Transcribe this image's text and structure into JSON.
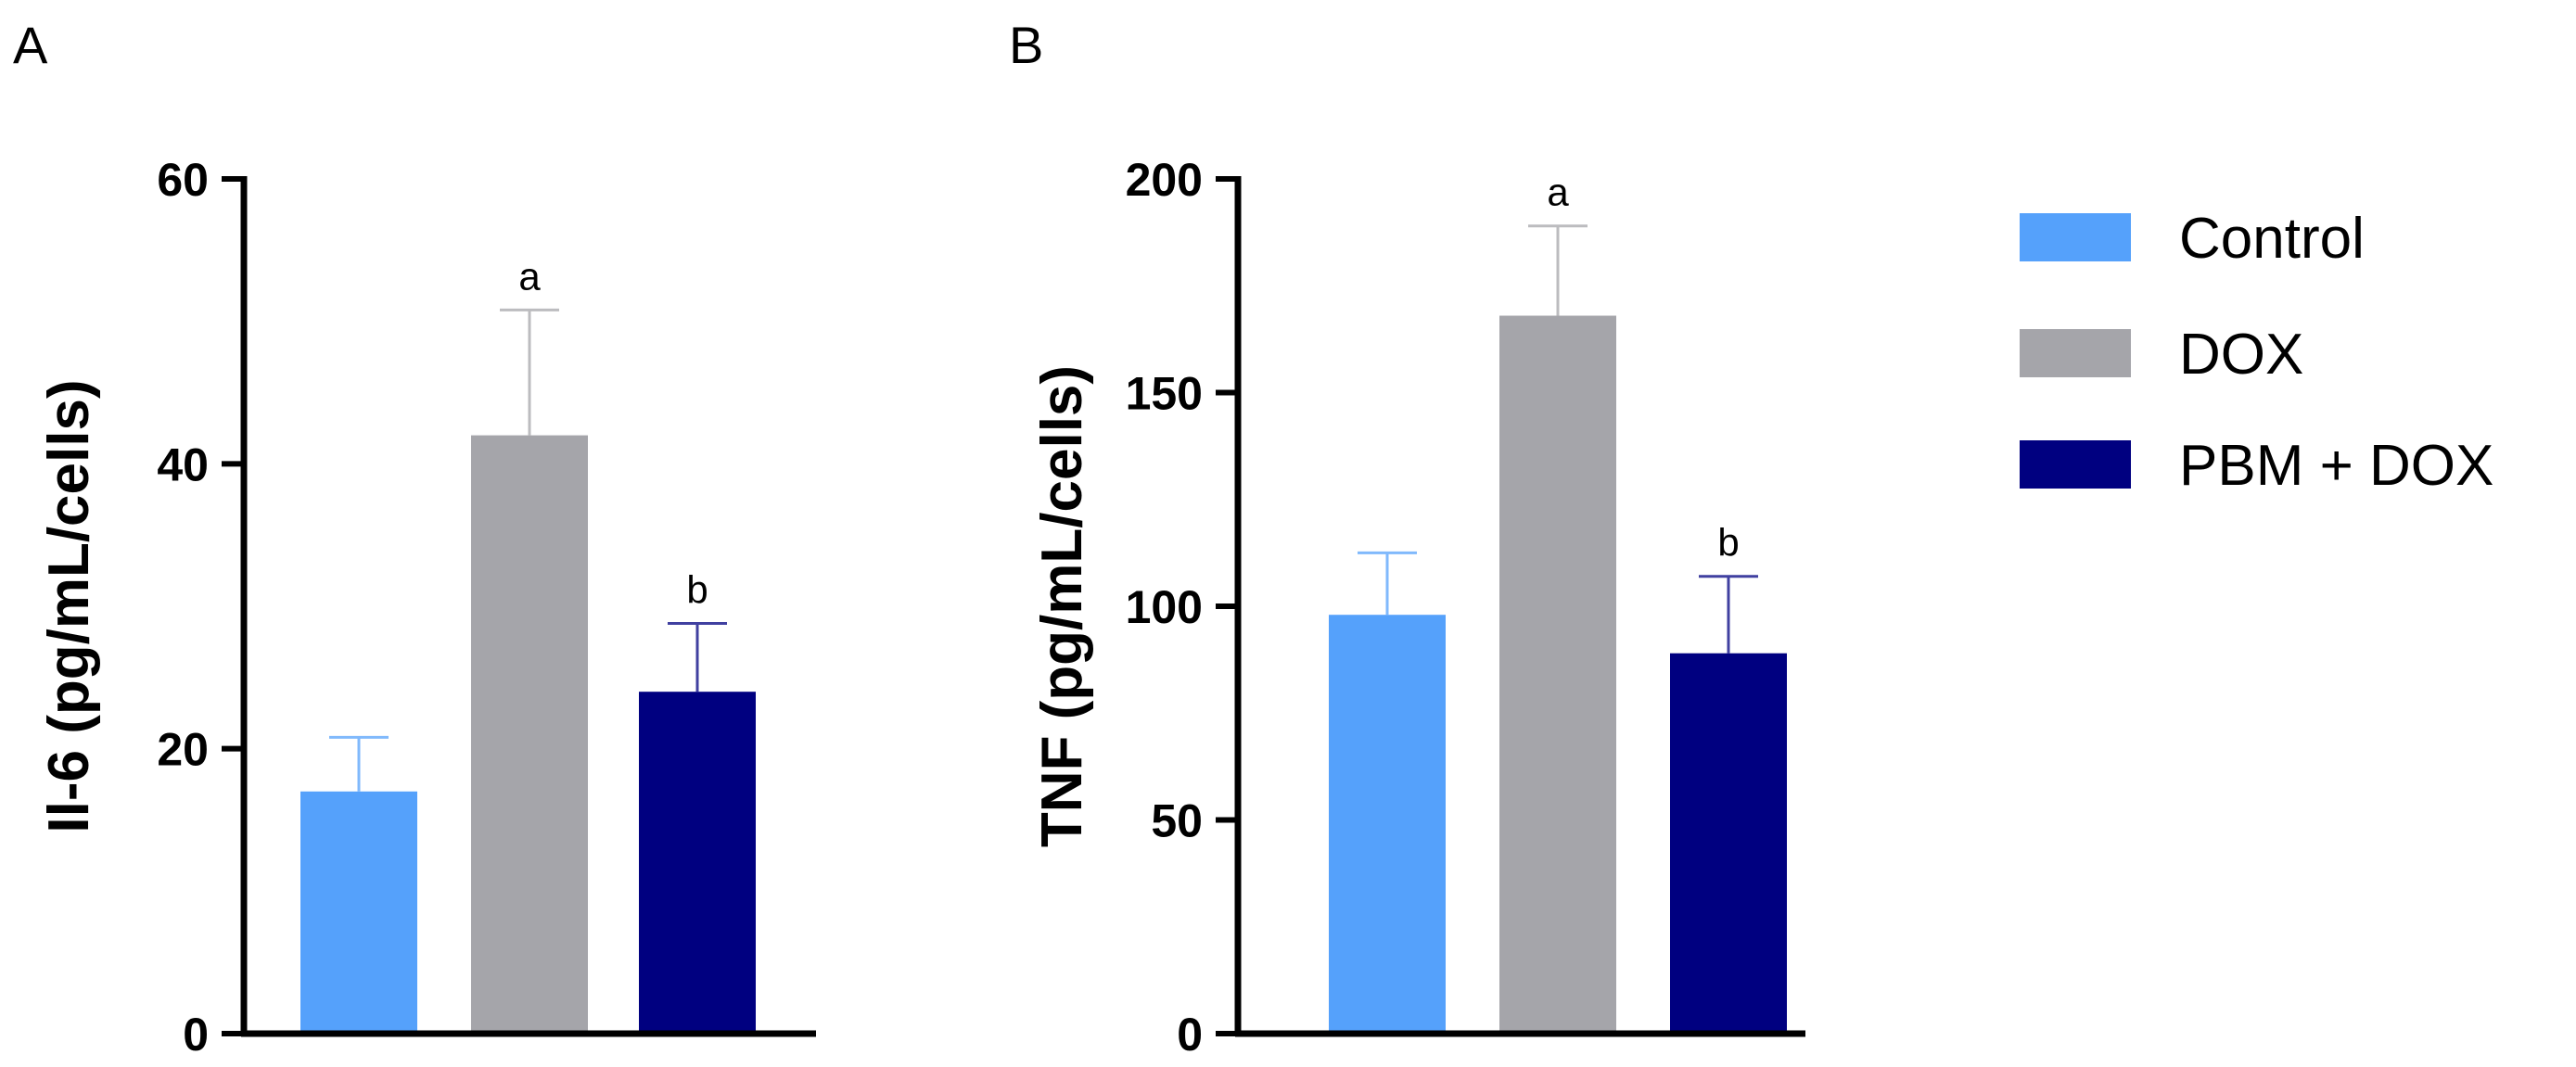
{
  "legend": [
    {
      "label": "Control",
      "color": "#55A1FB"
    },
    {
      "label": "DOX",
      "color": "#A5A5AA"
    },
    {
      "label": "PBM + DOX",
      "color": "#000080"
    }
  ],
  "chart_data": [
    {
      "type": "bar",
      "panel": "A",
      "ylabel": "Il-6 (pg/mL/cells)",
      "ylim": [
        0,
        60
      ],
      "yticks": [
        0,
        20,
        40,
        60
      ],
      "categories": [
        "Control",
        "DOX",
        "PBM + DOX"
      ],
      "values": [
        17,
        42,
        24
      ],
      "errors": [
        3.8,
        8.8,
        4.8
      ],
      "annotations": [
        "",
        "a",
        "b"
      ]
    },
    {
      "type": "bar",
      "panel": "B",
      "ylabel": "TNF (pg/mL/cells)",
      "ylim": [
        0,
        200
      ],
      "yticks": [
        0,
        50,
        100,
        150,
        200
      ],
      "categories": [
        "Control",
        "DOX",
        "PBM + DOX"
      ],
      "values": [
        98,
        168,
        89
      ],
      "errors": [
        14.5,
        21,
        18
      ],
      "annotations": [
        "",
        "a",
        "b"
      ]
    }
  ]
}
